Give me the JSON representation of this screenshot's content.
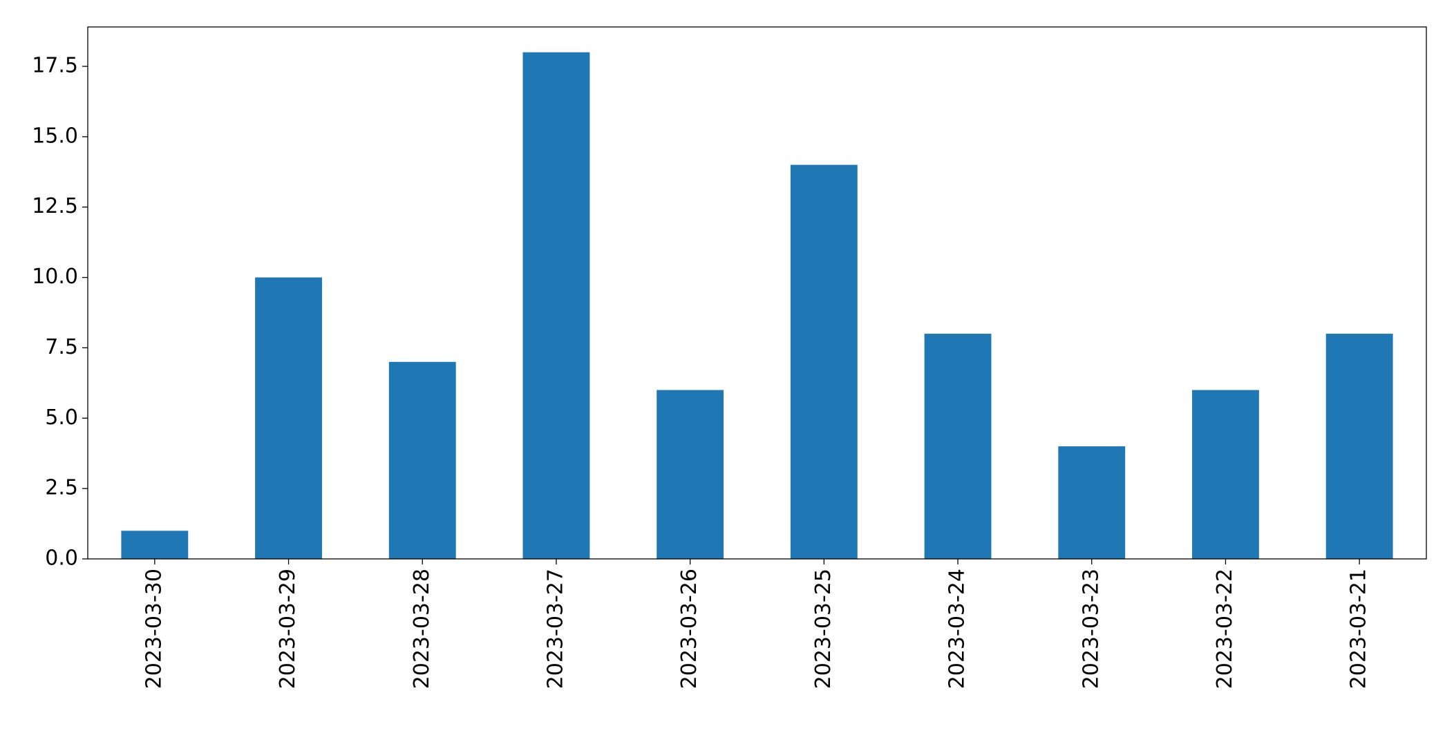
{
  "chart_data": {
    "type": "bar",
    "categories": [
      "2023-03-30",
      "2023-03-29",
      "2023-03-28",
      "2023-03-27",
      "2023-03-26",
      "2023-03-25",
      "2023-03-24",
      "2023-03-23",
      "2023-03-22",
      "2023-03-21"
    ],
    "values": [
      1,
      10,
      7,
      18,
      6,
      14,
      8,
      4,
      6,
      8
    ],
    "color": "#1f77b4",
    "ylim": [
      0,
      18.9
    ],
    "yticks": [
      {
        "value": 0,
        "label": "0.0"
      },
      2.5,
      {
        "value": 5,
        "label": "5.0"
      },
      7.5,
      {
        "value": 10,
        "label": "10.0"
      },
      12.5,
      {
        "value": 15,
        "label": "15.0"
      },
      17.5
    ],
    "grid": false
  }
}
